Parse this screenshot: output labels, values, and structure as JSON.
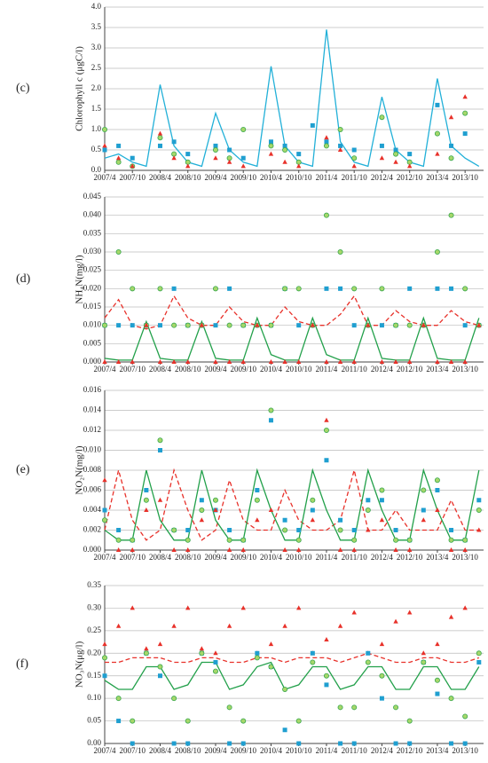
{
  "chart_data": [
    {
      "type": "line",
      "panel_label": "(c)",
      "ylabel": "Chlorophyll c (μgC/l)",
      "grid": true,
      "x": [
        "2007/4",
        "2007/7",
        "2007/10",
        "2008/1",
        "2008/4",
        "2008/7",
        "2008/10",
        "2009/1",
        "2009/4",
        "2009/7",
        "2009/10",
        "2010/1",
        "2010/4",
        "2010/7",
        "2010/10",
        "2011/1",
        "2011/4",
        "2011/7",
        "2011/10",
        "2012/1",
        "2012/4",
        "2012/7",
        "2012/10",
        "2013/1",
        "2013/4",
        "2013/7",
        "2013/10",
        "2014/1"
      ],
      "xlim": [
        "2007/4",
        "2014/2"
      ],
      "xticks": [
        "2007/4",
        "2007/10",
        "2008/4",
        "2008/10",
        "2009/4",
        "2009/10",
        "2010/4",
        "2010/10",
        "2011/4",
        "2011/10",
        "2012/4",
        "2012/10",
        "2013/4",
        "2013/10"
      ],
      "ylim": [
        0,
        4
      ],
      "yticks": [
        {
          "value": 0,
          "label": "0.0"
        },
        0.5,
        {
          "value": 1,
          "label": "1.0"
        },
        1.5,
        {
          "value": 2,
          "label": "2.0"
        },
        2.5,
        {
          "value": 3,
          "label": "3.0"
        },
        3.5,
        {
          "value": 4,
          "label": "4.0"
        }
      ],
      "series": [
        {
          "style": "line",
          "color": "#22b0d8",
          "values": [
            0.3,
            0.4,
            0.2,
            0.1,
            2.1,
            0.6,
            0.2,
            0.1,
            1.4,
            0.5,
            0.2,
            0.1,
            2.55,
            0.6,
            0.2,
            0.1,
            3.45,
            0.7,
            0.2,
            0.1,
            1.8,
            0.5,
            0.2,
            0.1,
            2.25,
            0.6,
            0.3,
            0.1
          ]
        },
        {
          "style": "square",
          "color": "#1f9fd0",
          "values": [
            0.5,
            0.6,
            0.3,
            null,
            0.6,
            0.7,
            0.4,
            null,
            0.6,
            0.5,
            0.3,
            null,
            0.7,
            0.6,
            0.4,
            1.1,
            0.7,
            0.6,
            0.5,
            null,
            0.6,
            0.5,
            0.4,
            null,
            1.6,
            0.6,
            0.9,
            null
          ]
        },
        {
          "style": "circle",
          "color": "#3aa84f",
          "values": [
            1.0,
            0.2,
            0.1,
            null,
            0.8,
            0.4,
            0.2,
            null,
            0.5,
            0.3,
            1.0,
            null,
            0.6,
            0.5,
            0.2,
            null,
            0.6,
            1.0,
            0.3,
            null,
            1.3,
            0.4,
            0.2,
            null,
            0.9,
            0.3,
            1.4,
            null
          ]
        },
        {
          "style": "triangle",
          "color": "#e8312a",
          "values": [
            0.6,
            0.3,
            0.1,
            null,
            0.9,
            0.3,
            0.1,
            null,
            0.3,
            0.2,
            0.1,
            null,
            0.4,
            0.2,
            0.1,
            null,
            0.8,
            0.5,
            0.1,
            null,
            0.3,
            0.2,
            0.1,
            null,
            0.4,
            1.3,
            1.8,
            null
          ]
        }
      ]
    },
    {
      "type": "line",
      "panel_label": "(d)",
      "ylabel": "NH₄N(mg/l)",
      "grid": true,
      "x": [
        "2007/4",
        "2007/7",
        "2007/10",
        "2008/1",
        "2008/4",
        "2008/7",
        "2008/10",
        "2009/1",
        "2009/4",
        "2009/7",
        "2009/10",
        "2010/1",
        "2010/4",
        "2010/7",
        "2010/10",
        "2011/1",
        "2011/4",
        "2011/7",
        "2011/10",
        "2012/1",
        "2012/4",
        "2012/7",
        "2012/10",
        "2013/1",
        "2013/4",
        "2013/7",
        "2013/10",
        "2014/1"
      ],
      "xlim": [
        "2007/4",
        "2014/2"
      ],
      "xticks": [
        "2007/4",
        "2007/10",
        "2008/4",
        "2008/10",
        "2009/4",
        "2009/10",
        "2010/4",
        "2010/10",
        "2011/4",
        "2011/10",
        "2012/4",
        "2012/10",
        "2013/4",
        "2013/10"
      ],
      "ylim": [
        0,
        0.045
      ],
      "yticks": [
        {
          "value": 0,
          "label": "0.000"
        },
        0.005,
        {
          "value": 0.01,
          "label": "0.010"
        },
        0.015,
        {
          "value": 0.02,
          "label": "0.020"
        },
        0.025,
        {
          "value": 0.03,
          "label": "0.030"
        },
        0.035,
        {
          "value": 0.04,
          "label": "0.040"
        },
        0.045
      ],
      "series": [
        {
          "style": "dashed",
          "color": "#e8312a",
          "values": [
            0.012,
            0.017,
            0.01,
            0.009,
            0.01,
            0.018,
            0.012,
            0.01,
            0.01,
            0.015,
            0.011,
            0.01,
            0.01,
            0.015,
            0.011,
            0.01,
            0.01,
            0.013,
            0.018,
            0.01,
            0.01,
            0.014,
            0.011,
            0.01,
            0.01,
            0.014,
            0.011,
            0.01
          ]
        },
        {
          "style": "line",
          "color": "#22a04a",
          "values": [
            0.001,
            0.0005,
            0.0005,
            0.011,
            0.001,
            0.0005,
            0.0005,
            0.011,
            0.001,
            0.0005,
            0.0005,
            0.012,
            0.002,
            0.0005,
            0.0005,
            0.012,
            0.002,
            0.0005,
            0.0005,
            0.012,
            0.001,
            0.0005,
            0.0005,
            0.012,
            0.001,
            0.0005,
            0.0005,
            0.012
          ]
        },
        {
          "style": "square",
          "color": "#1f9fd0",
          "values": [
            0.01,
            0.01,
            0.01,
            0.01,
            0.01,
            0.02,
            0.01,
            0.01,
            0.01,
            0.02,
            0.01,
            0.01,
            0.01,
            0.02,
            0.01,
            0.01,
            0.02,
            0.02,
            0.01,
            0.01,
            0.01,
            0.01,
            0.02,
            0.01,
            0.02,
            0.02,
            0.01,
            0.01
          ]
        },
        {
          "style": "circle",
          "color": "#3aa84f",
          "values": [
            0.01,
            0.03,
            0.02,
            0.01,
            0.02,
            0.01,
            0.01,
            0.01,
            0.02,
            0.01,
            0.01,
            0.01,
            0.01,
            0.02,
            0.02,
            0.01,
            0.04,
            0.03,
            0.02,
            0.01,
            0.02,
            0.01,
            0.01,
            0.01,
            0.03,
            0.04,
            0.02,
            0.01
          ]
        },
        {
          "style": "triangle",
          "color": "#e8312a",
          "values": [
            0,
            0,
            0,
            0.01,
            0,
            0,
            0,
            0.01,
            0,
            0,
            0,
            0.01,
            0,
            0,
            0,
            0.01,
            0,
            0,
            0,
            0.01,
            0,
            0,
            0,
            0.01,
            0,
            0,
            0,
            0.01
          ]
        }
      ]
    },
    {
      "type": "line",
      "panel_label": "(e)",
      "ylabel": "NO₂N(mg/l)",
      "grid": true,
      "x": [
        "2007/4",
        "2007/7",
        "2007/10",
        "2008/1",
        "2008/4",
        "2008/7",
        "2008/10",
        "2009/1",
        "2009/4",
        "2009/7",
        "2009/10",
        "2010/1",
        "2010/4",
        "2010/7",
        "2010/10",
        "2011/1",
        "2011/4",
        "2011/7",
        "2011/10",
        "2012/1",
        "2012/4",
        "2012/7",
        "2012/10",
        "2013/1",
        "2013/4",
        "2013/7",
        "2013/10",
        "2014/1"
      ],
      "xlim": [
        "2007/4",
        "2014/2"
      ],
      "xticks": [
        "2007/4",
        "2007/10",
        "2008/4",
        "2008/10",
        "2009/4",
        "2009/10",
        "2010/4",
        "2010/10",
        "2011/4",
        "2011/10",
        "2012/4",
        "2012/10",
        "2013/4",
        "2013/10"
      ],
      "ylim": [
        0,
        0.016
      ],
      "yticks": [
        {
          "value": 0,
          "label": "0.000"
        },
        0.002,
        0.004,
        0.006,
        0.008,
        {
          "value": 0.01,
          "label": "0.010"
        },
        0.012,
        0.014,
        0.016
      ],
      "series": [
        {
          "style": "dashed",
          "color": "#e8312a",
          "values": [
            0.002,
            0.008,
            0.003,
            0.001,
            0.002,
            0.008,
            0.004,
            0.001,
            0.002,
            0.007,
            0.003,
            0.002,
            0.002,
            0.006,
            0.003,
            0.002,
            0.002,
            0.003,
            0.008,
            0.002,
            0.002,
            0.004,
            0.002,
            0.002,
            0.002,
            0.005,
            0.002,
            0.002
          ]
        },
        {
          "style": "line",
          "color": "#22a04a",
          "values": [
            0.002,
            0.001,
            0.001,
            0.008,
            0.003,
            0.001,
            0.001,
            0.008,
            0.003,
            0.001,
            0.001,
            0.008,
            0.004,
            0.001,
            0.001,
            0.008,
            0.004,
            0.001,
            0.001,
            0.008,
            0.004,
            0.001,
            0.001,
            0.008,
            0.004,
            0.001,
            0.001,
            0.008
          ]
        },
        {
          "style": "square",
          "color": "#1f9fd0",
          "values": [
            0.004,
            0.002,
            0.001,
            0.006,
            0.01,
            0.002,
            0.002,
            0.005,
            0.004,
            0.002,
            0.001,
            0.006,
            0.013,
            0.003,
            0.002,
            0.004,
            0.009,
            0.003,
            0.002,
            0.005,
            0.005,
            0.002,
            0.001,
            0.004,
            0.006,
            0.002,
            0.001,
            0.005
          ]
        },
        {
          "style": "circle",
          "color": "#3aa84f",
          "values": [
            0.003,
            0.001,
            0.001,
            0.005,
            0.011,
            0.002,
            0.001,
            0.004,
            0.005,
            0.001,
            0.001,
            0.005,
            0.014,
            0.002,
            0.001,
            0.005,
            0.012,
            0.002,
            0.001,
            0.004,
            0.006,
            0.001,
            0.001,
            0.006,
            0.007,
            0.001,
            0.001,
            0.004
          ]
        },
        {
          "style": "triangle",
          "color": "#e8312a",
          "values": [
            0.007,
            0,
            0,
            0.004,
            0.005,
            0,
            0,
            0.003,
            0.004,
            0,
            0,
            0.003,
            0.004,
            0,
            0,
            0.003,
            0.013,
            0,
            0,
            0.002,
            0.003,
            0,
            0,
            0.003,
            0.004,
            0,
            0,
            0.002
          ]
        }
      ]
    },
    {
      "type": "line",
      "panel_label": "(f)",
      "ylabel": "NO₃N(μg/l)",
      "grid": true,
      "x": [
        "2007/4",
        "2007/7",
        "2007/10",
        "2008/1",
        "2008/4",
        "2008/7",
        "2008/10",
        "2009/1",
        "2009/4",
        "2009/7",
        "2009/10",
        "2010/1",
        "2010/4",
        "2010/7",
        "2010/10",
        "2011/1",
        "2011/4",
        "2011/7",
        "2011/10",
        "2012/1",
        "2012/4",
        "2012/7",
        "2012/10",
        "2013/1",
        "2013/4",
        "2013/7",
        "2013/10",
        "2014/1"
      ],
      "xlim": [
        "2007/4",
        "2014/2"
      ],
      "xticks": [
        "2007/4",
        "2007/10",
        "2008/4",
        "2008/10",
        "2009/4",
        "2009/10",
        "2010/4",
        "2010/10",
        "2011/4",
        "2011/10",
        "2012/4",
        "2012/10",
        "2013/4",
        "2013/10"
      ],
      "ylim": [
        0,
        0.35
      ],
      "yticks": [
        {
          "value": 0,
          "label": "0.00"
        },
        0.05,
        {
          "value": 0.1,
          "label": "0.10"
        },
        0.15,
        {
          "value": 0.2,
          "label": "0.20"
        },
        0.25,
        {
          "value": 0.3,
          "label": "0.30"
        },
        0.35
      ],
      "series": [
        {
          "style": "dashed",
          "color": "#e8312a",
          "values": [
            0.18,
            0.18,
            0.19,
            0.19,
            0.19,
            0.18,
            0.18,
            0.19,
            0.19,
            0.18,
            0.18,
            0.19,
            0.19,
            0.18,
            0.19,
            0.19,
            0.19,
            0.18,
            0.19,
            0.2,
            0.19,
            0.18,
            0.18,
            0.19,
            0.19,
            0.18,
            0.18,
            0.19
          ]
        },
        {
          "style": "line",
          "color": "#22a04a",
          "values": [
            0.14,
            0.12,
            0.12,
            0.17,
            0.17,
            0.12,
            0.13,
            0.18,
            0.18,
            0.12,
            0.13,
            0.17,
            0.18,
            0.12,
            0.13,
            0.17,
            0.17,
            0.12,
            0.13,
            0.17,
            0.17,
            0.12,
            0.12,
            0.17,
            0.17,
            0.12,
            0.12,
            0.17
          ]
        },
        {
          "style": "triangle",
          "color": "#e8312a",
          "values": [
            0.22,
            0.26,
            0.3,
            0.21,
            0.22,
            0.26,
            0.3,
            0.21,
            0.2,
            0.26,
            0.3,
            0.2,
            0.22,
            0.26,
            0.3,
            0.2,
            0.23,
            0.26,
            0.29,
            0.2,
            0.22,
            0.27,
            0.29,
            0.2,
            0.22,
            0.28,
            0.3,
            0.2
          ]
        },
        {
          "style": "square",
          "color": "#1f9fd0",
          "values": [
            0.15,
            0.05,
            0,
            0.2,
            0.15,
            0,
            0,
            0.2,
            0.18,
            0,
            0,
            0.2,
            0.17,
            0.03,
            0,
            0.2,
            0.13,
            0,
            0,
            0.2,
            0.1,
            0,
            0,
            0.18,
            0.11,
            0,
            0,
            0.18
          ]
        },
        {
          "style": "circle",
          "color": "#3aa84f",
          "values": [
            0.19,
            0.1,
            0.05,
            0.2,
            0.17,
            0.1,
            0.05,
            0.2,
            0.16,
            0.08,
            0.05,
            0.19,
            0.17,
            0.12,
            0.05,
            0.18,
            0.15,
            0.08,
            0.08,
            0.18,
            0.15,
            0.08,
            0.05,
            0.18,
            0.14,
            0.1,
            0.06,
            0.2
          ]
        }
      ]
    }
  ]
}
